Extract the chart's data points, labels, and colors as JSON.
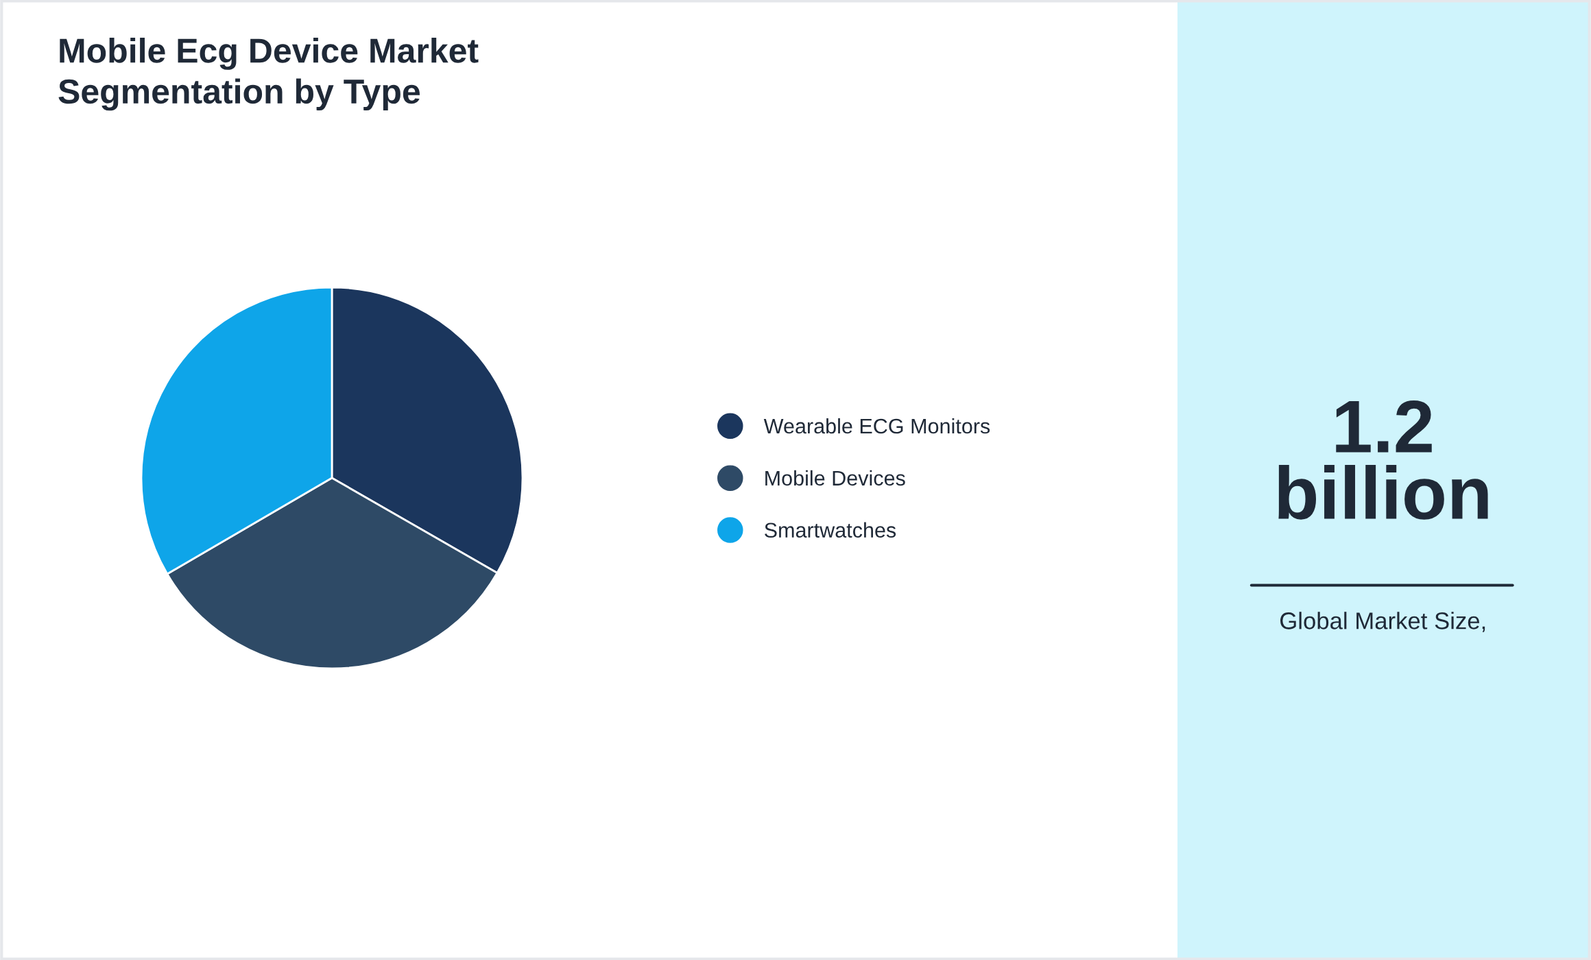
{
  "chart_data": [
    {
      "type": "pie",
      "title": "Mobile Ecg Device Market\nSegmentation by Type",
      "categories": [
        "Wearable ECG Monitors",
        "Mobile Devices",
        "Smartwatches"
      ],
      "values": [
        33.3,
        33.3,
        33.4
      ],
      "colors": [
        "#1b365d",
        "#2e4a66",
        "#0ea5e9"
      ],
      "legend": "right"
    },
    {
      "type": "other",
      "annotations": [
        "1.2 billion",
        "Global Market Size,"
      ]
    }
  ]
}
